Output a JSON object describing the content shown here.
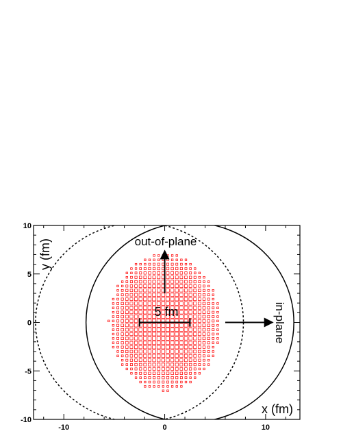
{
  "axes": {
    "x_label": "x (fm)",
    "y_label": "y (fm)",
    "xlim": [
      -13,
      13.4
    ],
    "ylim": [
      -10,
      10
    ],
    "x_ticks": [
      {
        "value": -10,
        "label": "-10"
      },
      {
        "value": 0,
        "label": "0"
      },
      {
        "value": 10,
        "label": "10"
      }
    ],
    "y_ticks": [
      {
        "value": 10,
        "label": "10"
      },
      {
        "value": 5,
        "label": "5"
      },
      {
        "value": 0,
        "label": "0"
      },
      {
        "value": -5,
        "label": "-5"
      },
      {
        "value": -10,
        "label": "-10"
      }
    ]
  },
  "nuclei": [
    {
      "name": "dashed-nucleus",
      "center": [
        -2.5,
        0
      ],
      "radius": 10.3,
      "style": "dashed"
    },
    {
      "name": "solid-nucleus",
      "center": [
        2.5,
        0
      ],
      "radius": 10.3,
      "style": "solid"
    }
  ],
  "overlap_region": {
    "color": "#ff0000",
    "half_width_x": 5.5,
    "half_height_y": 7.0
  },
  "annotations": {
    "out_of_plane": "out-of-plane",
    "in_plane": "in-plane",
    "impact_parameter": "5 fm"
  },
  "arrows": {
    "out_of_plane": {
      "from": [
        0,
        3
      ],
      "to": [
        0,
        7.5
      ]
    },
    "in_plane": {
      "from": [
        6,
        0
      ],
      "to": [
        10.8,
        0
      ]
    },
    "bar": {
      "from": [
        -2.5,
        0
      ],
      "to": [
        2.5,
        0
      ]
    }
  }
}
